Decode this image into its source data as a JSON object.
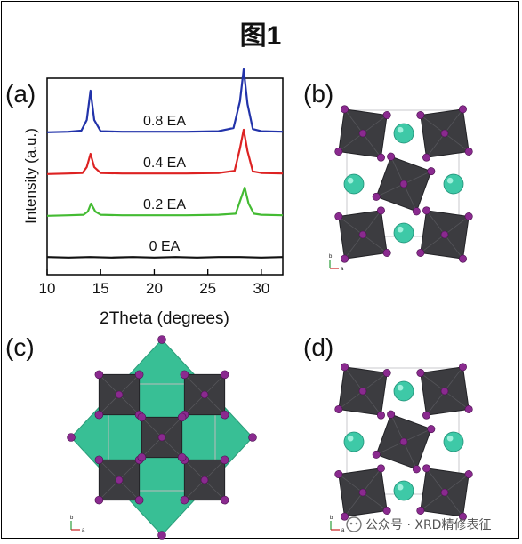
{
  "figure": {
    "title": "图1",
    "panel_labels": [
      "(a)",
      "(b)",
      "(c)",
      "(d)"
    ],
    "watermark": "公众号 · XRD精修表征",
    "mini_axes_labels": [
      "b",
      "a"
    ]
  },
  "colors": {
    "frame": "#000000",
    "octahedron": "#3c3c40",
    "octahedron_edge": "#222226",
    "atom_purple": "#8a2a8f",
    "atom_green": "#3ec9a7",
    "teal_fill": "#38bf95"
  },
  "chart_data": {
    "type": "line",
    "title": "",
    "xlabel": "2Theta (degrees)",
    "ylabel": "Intensity (a.u.)",
    "xlim": [
      10,
      32
    ],
    "xticks": [
      10,
      15,
      20,
      25,
      30
    ],
    "grid": false,
    "legend": "none",
    "series": [
      {
        "name": "0.8 EA",
        "color": "#2233aa",
        "offset": 3,
        "x": [
          10,
          12,
          13.2,
          13.7,
          14.05,
          14.4,
          15,
          17,
          20,
          23,
          26,
          27.4,
          28.0,
          28.35,
          28.7,
          29.2,
          30,
          32
        ],
        "y": [
          0.02,
          0.03,
          0.05,
          0.25,
          0.8,
          0.25,
          0.04,
          0.03,
          0.03,
          0.03,
          0.04,
          0.1,
          0.6,
          1.2,
          0.55,
          0.08,
          0.04,
          0.03
        ]
      },
      {
        "name": "0.4 EA",
        "color": "#dd2222",
        "offset": 2,
        "x": [
          10,
          12,
          13.3,
          13.7,
          14.05,
          14.4,
          15,
          17,
          20,
          23,
          26,
          27.5,
          28.0,
          28.35,
          28.7,
          29.2,
          30,
          32
        ],
        "y": [
          0.02,
          0.03,
          0.04,
          0.15,
          0.4,
          0.15,
          0.04,
          0.03,
          0.03,
          0.03,
          0.04,
          0.08,
          0.5,
          0.85,
          0.45,
          0.07,
          0.04,
          0.03
        ]
      },
      {
        "name": "0.2 EA",
        "color": "#44bb33",
        "offset": 1,
        "x": [
          10,
          12,
          13.4,
          13.8,
          14.1,
          14.5,
          15,
          17,
          20,
          23,
          26,
          27.6,
          28.1,
          28.45,
          28.8,
          29.3,
          30,
          32
        ],
        "y": [
          0.02,
          0.03,
          0.04,
          0.1,
          0.25,
          0.1,
          0.04,
          0.03,
          0.03,
          0.03,
          0.04,
          0.06,
          0.35,
          0.55,
          0.25,
          0.06,
          0.04,
          0.03
        ]
      },
      {
        "name": "0 EA",
        "color": "#111111",
        "offset": 0,
        "x": [
          10,
          12,
          14,
          16,
          18,
          20,
          22,
          24,
          26,
          28,
          30,
          32
        ],
        "y": [
          0.03,
          0.02,
          0.03,
          0.02,
          0.03,
          0.02,
          0.03,
          0.02,
          0.03,
          0.03,
          0.02,
          0.03
        ]
      }
    ]
  }
}
